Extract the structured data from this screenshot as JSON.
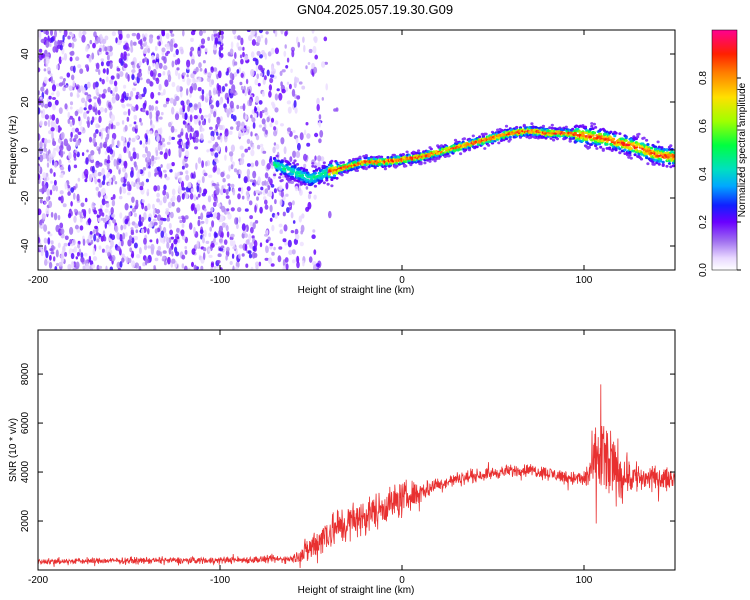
{
  "title": "GN04.2025.057.19.30.G09",
  "chart_data": [
    {
      "type": "heatmap",
      "xlabel": "Height of straight line (km)",
      "ylabel": "Frequency (Hz)",
      "xlim": [
        -200,
        150
      ],
      "ylim": [
        -50,
        50
      ],
      "xticks": [
        -200,
        -100,
        0,
        100
      ],
      "yticks": [
        -40,
        -20,
        0,
        20,
        40
      ],
      "colorbar": {
        "label": "Normalized spectral amplitude",
        "range": [
          0,
          1
        ],
        "ticks": [
          "0.0",
          "0.2",
          "0.4",
          "0.6",
          "0.8"
        ]
      },
      "ridge": {
        "x": [
          -70,
          -60,
          -50,
          -40,
          -30,
          -20,
          -10,
          0,
          10,
          20,
          30,
          40,
          50,
          60,
          70,
          80,
          90,
          100,
          110,
          120,
          130,
          140,
          150
        ],
        "frequency": [
          -6,
          -9,
          -12,
          -9,
          -7,
          -5,
          -5,
          -4,
          -3,
          -1,
          1,
          3,
          5,
          7,
          8,
          7,
          7,
          6,
          5,
          3,
          1,
          -2,
          -3
        ]
      },
      "noise_region_xlim": [
        -200,
        -50
      ]
    },
    {
      "type": "line",
      "xlabel": "Height of straight line (km)",
      "ylabel": "SNR (10 * v/v)",
      "xlim": [
        -200,
        150
      ],
      "ylim": [
        0,
        9800
      ],
      "xticks": [
        -200,
        -100,
        0,
        100
      ],
      "yticks": [
        2000,
        4000,
        6000,
        8000
      ],
      "color": "#e83030",
      "envelope": {
        "x": [
          -200,
          -150,
          -100,
          -60,
          -50,
          -40,
          -30,
          -20,
          -10,
          0,
          10,
          20,
          30,
          40,
          50,
          60,
          70,
          80,
          90,
          100,
          105,
          110,
          115,
          120,
          130,
          140,
          150
        ],
        "mean": [
          350,
          380,
          400,
          450,
          900,
          1600,
          1900,
          2200,
          2600,
          2900,
          3200,
          3500,
          3700,
          3850,
          3950,
          4050,
          4100,
          3950,
          3800,
          3700,
          4200,
          4600,
          4200,
          3900,
          3800,
          3700,
          3750
        ],
        "spread": [
          150,
          160,
          170,
          200,
          800,
          1000,
          1000,
          900,
          900,
          900,
          600,
          350,
          350,
          300,
          300,
          300,
          300,
          350,
          350,
          400,
          1500,
          2600,
          1900,
          1400,
          800,
          600,
          400
        ]
      }
    }
  ]
}
